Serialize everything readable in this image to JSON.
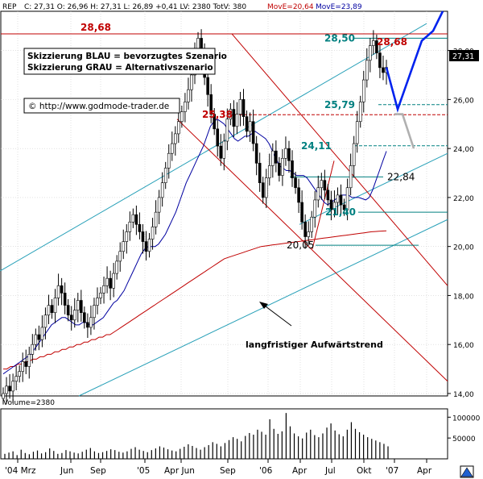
{
  "header": {
    "symbol": "REP",
    "ohlc_text": "C: 27,31 O: 26,96 H: 27,31 L: 26,89 +0,41 LV: 2380 TotV: 380",
    "mova_fast_text": "MovE=20,64",
    "mova_slow_text": "MovE=23,89"
  },
  "legend_box": {
    "line1": "Skizzierung BLAU = bevorzugtes Szenario",
    "line2": "Skizzierung GRAU = Alternativszenario"
  },
  "copyright": "© http://www.godmode-trader.de",
  "annotation_trend": "langfristiger Aufwärtstrend",
  "price_label_current": "27,31",
  "level_labels": {
    "l2868_left": "28,68",
    "l2868_right": "28,68",
    "l2850": "28,50",
    "l2579": "25,79",
    "l2538": "25,38",
    "l2411": "24,11",
    "l2284": "22,84",
    "l2140": "21,40",
    "l2005": "20,05"
  },
  "volume": {
    "label": "Volume=2380",
    "ticks": [
      "100000",
      "50000"
    ],
    "values": [
      12000,
      15000,
      18000,
      9000,
      22000,
      14000,
      11000,
      17000,
      20000,
      13000,
      16000,
      25000,
      19000,
      12000,
      14000,
      21000,
      18000,
      15000,
      13000,
      17000,
      22000,
      26000,
      18000,
      14000,
      16000,
      19000,
      23000,
      21000,
      17000,
      15000,
      18000,
      24000,
      28000,
      22000,
      19000,
      16000,
      21000,
      25000,
      30000,
      27000,
      23000,
      20000,
      18000,
      24000,
      29000,
      35000,
      31000,
      26000,
      22000,
      28000,
      33000,
      40000,
      36000,
      30000,
      38000,
      45000,
      52000,
      48000,
      42000,
      55000,
      62000,
      58000,
      70000,
      65000,
      58000,
      95000,
      72000,
      60000,
      66000,
      110000,
      78000,
      61000,
      54000,
      49000,
      63000,
      70000,
      57000,
      52000,
      61000,
      75000,
      85000,
      68000,
      59000,
      54000,
      70000,
      88000,
      72000,
      64000,
      58000,
      52000,
      48000,
      44000,
      40000,
      36000,
      30000
    ]
  },
  "chart_data": {
    "type": "candlestick",
    "title": "REP",
    "xlabel": "",
    "ylabel": "",
    "x_ticks": [
      "'04 Mrz",
      "Jun",
      "Sep",
      "'05",
      "Apr Jun",
      "Sep",
      "'06",
      "Apr",
      "Jul",
      "Okt",
      "'07",
      "Apr"
    ],
    "y_ticks": [
      "28,00",
      "26,00",
      "24,00",
      "22,00",
      "20,00",
      "18,00",
      "16,00",
      "14,00"
    ],
    "ylim": [
      13.9,
      29.6
    ],
    "grid": true,
    "close": [
      14.0,
      14.3,
      14.1,
      14.5,
      14.7,
      14.9,
      15.3,
      15.1,
      15.6,
      16.0,
      16.4,
      16.2,
      16.7,
      17.2,
      17.6,
      17.3,
      17.9,
      18.4,
      18.1,
      17.6,
      17.2,
      17.0,
      17.4,
      17.8,
      17.3,
      16.9,
      16.7,
      17.1,
      17.6,
      17.9,
      18.1,
      18.4,
      18.7,
      18.3,
      18.9,
      19.4,
      19.8,
      20.2,
      20.6,
      21.0,
      21.3,
      20.9,
      20.6,
      20.2,
      19.8,
      20.3,
      20.8,
      21.4,
      22.0,
      22.6,
      23.2,
      23.8,
      24.2,
      24.6,
      25.1,
      25.5,
      25.9,
      26.4,
      27.0,
      27.9,
      28.5,
      27.8,
      26.9,
      26.2,
      25.4,
      24.8,
      24.1,
      23.6,
      24.3,
      25.2,
      25.6,
      24.9,
      25.4,
      26.0,
      25.3,
      24.7,
      25.1,
      24.2,
      23.4,
      22.6,
      22.0,
      22.8,
      23.3,
      23.9,
      23.4,
      22.9,
      23.6,
      24.0,
      23.5,
      22.8,
      22.4,
      21.8,
      21.0,
      20.4,
      20.6,
      21.2,
      21.9,
      22.4,
      22.7,
      22.3,
      21.9,
      21.5,
      21.8,
      22.1,
      21.7,
      21.5,
      22.4,
      23.3,
      24.2,
      25.1,
      25.9,
      26.8,
      27.6,
      28.2,
      28.4,
      27.9,
      27.3,
      27.1,
      27.31
    ],
    "series": [
      {
        "name": "MovE=20,64",
        "color": "#c00000",
        "values": [
          15.0,
          15.0,
          15.1,
          15.1,
          15.2,
          15.2,
          15.3,
          15.3,
          15.4,
          15.4,
          15.5,
          15.5,
          15.6,
          15.6,
          15.7,
          15.7,
          15.8,
          15.8,
          15.9,
          15.9,
          16.0,
          16.0,
          16.1,
          16.1,
          16.2,
          16.2,
          16.3,
          16.3,
          16.4,
          16.4,
          16.5,
          16.6,
          16.7,
          16.8,
          16.9,
          17.0,
          17.1,
          17.2,
          17.3,
          17.4,
          17.5,
          17.6,
          17.7,
          17.8,
          17.9,
          18.0,
          18.1,
          18.2,
          18.3,
          18.4,
          18.5,
          18.6,
          18.7,
          18.8,
          18.9,
          19.0,
          19.1,
          19.2,
          19.3,
          19.4,
          19.5,
          19.55,
          19.6,
          19.65,
          19.7,
          19.75,
          19.8,
          19.85,
          19.9,
          19.95,
          20.0,
          20.02,
          20.04,
          20.06,
          20.08,
          20.1,
          20.12,
          20.14,
          20.16,
          20.18,
          20.2,
          20.22,
          20.24,
          20.26,
          20.28,
          20.3,
          20.32,
          20.34,
          20.36,
          20.38,
          20.4,
          20.42,
          20.44,
          20.46,
          20.48,
          20.5,
          20.52,
          20.54,
          20.56,
          20.58,
          20.6,
          20.61,
          20.62,
          20.63,
          20.64
        ]
      },
      {
        "name": "MovE=23,89",
        "color": "#0000a0",
        "values": [
          14.8,
          14.9,
          15.0,
          15.1,
          15.2,
          15.3,
          15.4,
          15.5,
          15.6,
          15.8,
          16.0,
          16.2,
          16.4,
          16.6,
          16.8,
          16.9,
          17.0,
          17.1,
          17.1,
          17.0,
          16.9,
          16.8,
          16.8,
          16.9,
          16.9,
          16.8,
          16.8,
          16.9,
          17.0,
          17.1,
          17.3,
          17.5,
          17.7,
          17.8,
          18.0,
          18.2,
          18.5,
          18.8,
          19.1,
          19.4,
          19.7,
          19.9,
          20.0,
          20.0,
          20.0,
          20.1,
          20.3,
          20.5,
          20.8,
          21.1,
          21.4,
          21.8,
          22.2,
          22.6,
          22.9,
          23.2,
          23.5,
          23.8,
          24.1,
          24.5,
          24.9,
          25.1,
          25.2,
          25.1,
          25.0,
          24.8,
          24.6,
          24.4,
          24.3,
          24.4,
          24.5,
          24.5,
          24.6,
          24.7,
          24.6,
          24.5,
          24.4,
          24.2,
          23.9,
          23.6,
          23.3,
          23.2,
          23.1,
          23.1,
          23.0,
          22.9,
          22.9,
          22.9,
          22.8,
          22.6,
          22.4,
          22.2,
          22.0,
          21.8,
          21.7,
          21.8,
          21.9,
          22.0,
          22.1,
          22.1,
          22.1,
          22.0,
          22.0,
          22.0,
          21.95,
          21.9,
          22.0,
          22.3,
          22.7,
          23.1,
          23.5,
          23.89
        ]
      }
    ],
    "levels": [
      28.68,
      28.5,
      25.79,
      25.38,
      24.11,
      22.84,
      21.4,
      20.05
    ],
    "blue_scenario": [
      27.31,
      25.6,
      29.6
    ],
    "grey_scenario": [
      25.4,
      24.0
    ]
  }
}
